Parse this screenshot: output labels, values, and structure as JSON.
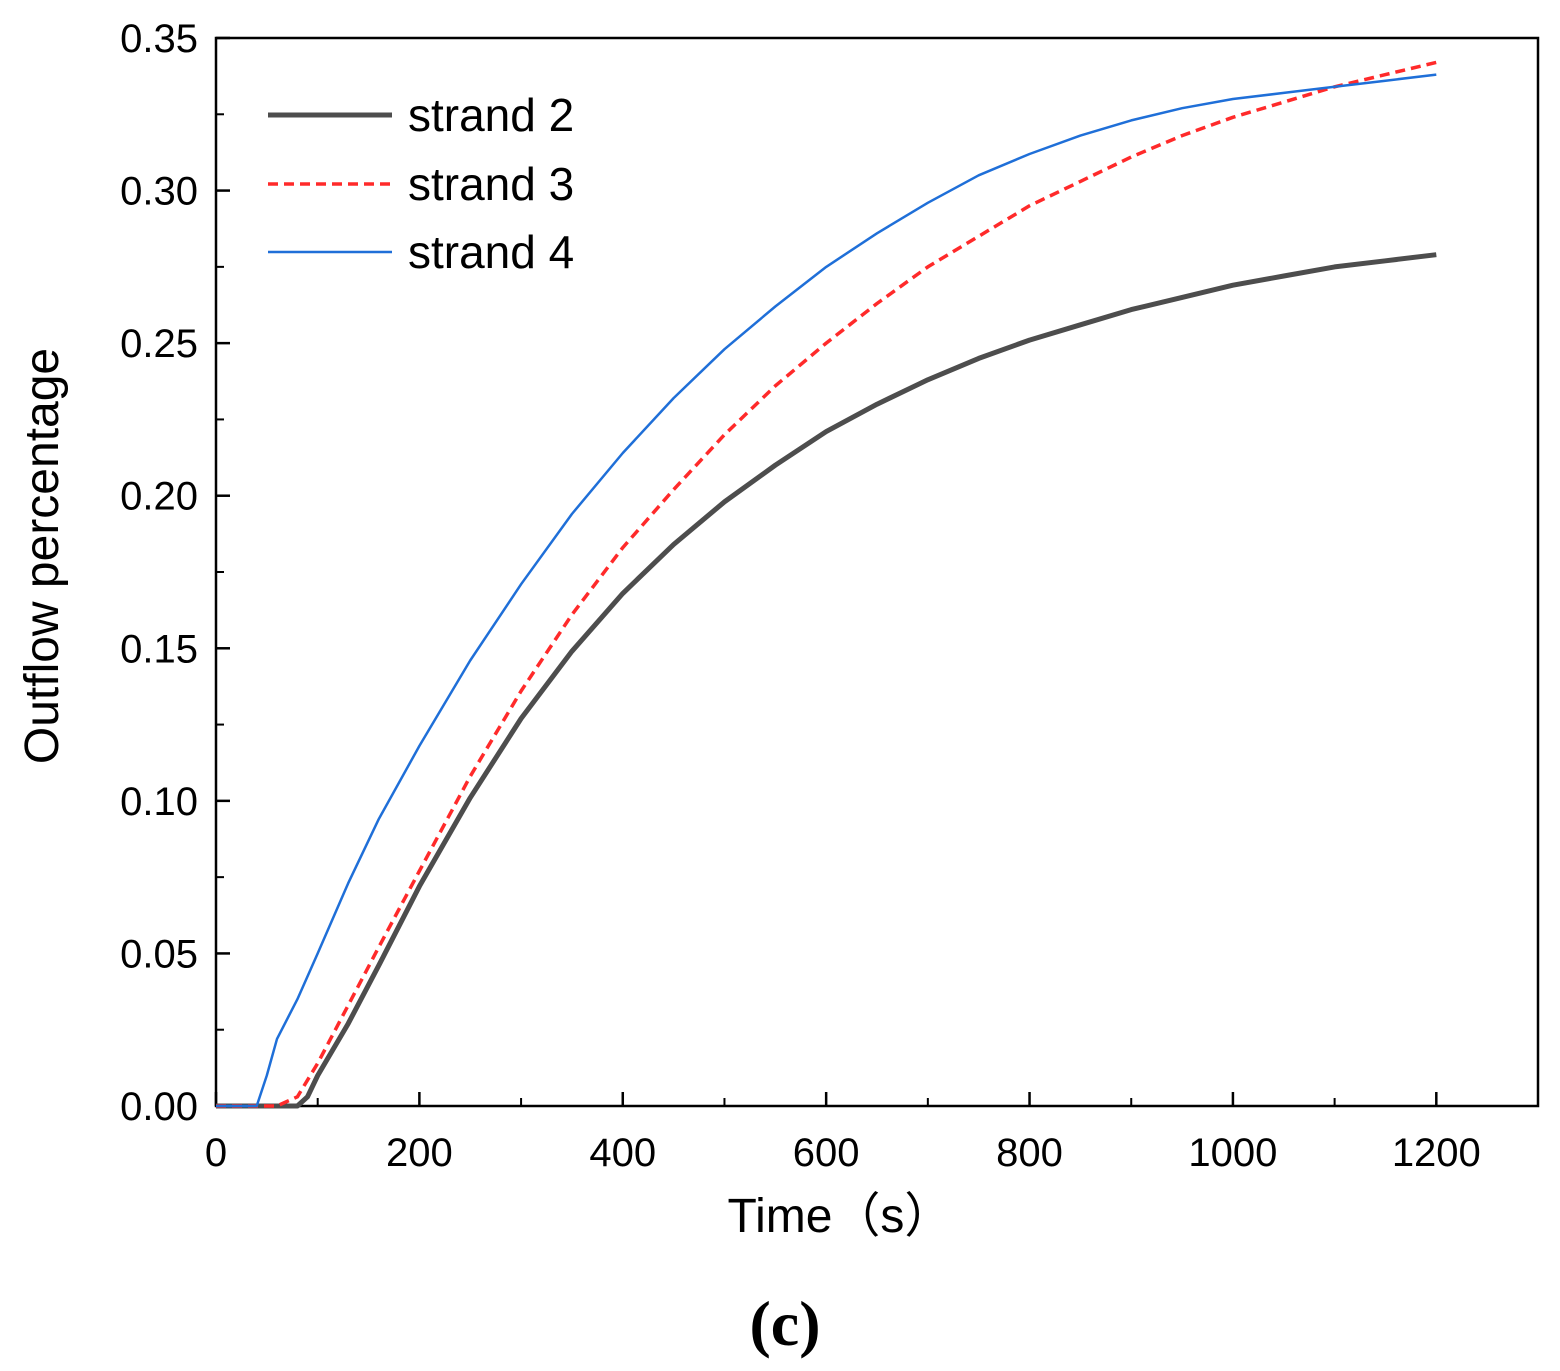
{
  "chart_data": {
    "type": "line",
    "xlabel": "Time（s）",
    "ylabel": "Outflow percentage",
    "panel_label": "(c)",
    "xlim": [
      0,
      1300
    ],
    "ylim": [
      0,
      0.35
    ],
    "x_major_ticks": [
      0,
      200,
      400,
      600,
      800,
      1000,
      1200
    ],
    "x_tick_labels": [
      "0",
      "200",
      "400",
      "600",
      "800",
      "1000",
      "1200"
    ],
    "x_minor_ticks": [
      100,
      300,
      500,
      700,
      900,
      1100,
      1300
    ],
    "y_major_ticks": [
      0,
      0.05,
      0.1,
      0.15,
      0.2,
      0.25,
      0.3,
      0.35
    ],
    "y_tick_labels": [
      "0.00",
      "0.05",
      "0.10",
      "0.15",
      "0.20",
      "0.25",
      "0.30",
      "0.35"
    ],
    "y_minor_ticks": [
      0.025,
      0.075,
      0.125,
      0.175,
      0.225,
      0.275,
      0.325
    ],
    "grid": false,
    "legend_position": "top-left",
    "series": [
      {
        "name": "strand 2",
        "color": "#4d4d4d",
        "dash": "solid",
        "width": "thick",
        "x": [
          0,
          80,
          90,
          100,
          130,
          160,
          200,
          250,
          300,
          350,
          400,
          450,
          500,
          550,
          600,
          650,
          700,
          750,
          800,
          850,
          900,
          950,
          1000,
          1050,
          1100,
          1150,
          1200
        ],
        "y": [
          0,
          0,
          0.003,
          0.01,
          0.027,
          0.046,
          0.072,
          0.101,
          0.127,
          0.149,
          0.168,
          0.184,
          0.198,
          0.21,
          0.221,
          0.23,
          0.238,
          0.245,
          0.251,
          0.256,
          0.261,
          0.265,
          0.269,
          0.272,
          0.275,
          0.277,
          0.279
        ]
      },
      {
        "name": "strand 3",
        "color": "#ff2a2a",
        "dash": "dashed",
        "width": "medium",
        "x": [
          0,
          60,
          80,
          100,
          130,
          160,
          200,
          250,
          300,
          350,
          400,
          450,
          500,
          550,
          600,
          650,
          700,
          750,
          800,
          850,
          900,
          950,
          1000,
          1050,
          1100,
          1150,
          1200
        ],
        "y": [
          0,
          0,
          0.003,
          0.014,
          0.033,
          0.052,
          0.077,
          0.108,
          0.136,
          0.161,
          0.183,
          0.202,
          0.22,
          0.236,
          0.25,
          0.263,
          0.275,
          0.285,
          0.295,
          0.303,
          0.311,
          0.318,
          0.324,
          0.329,
          0.334,
          0.338,
          0.342
        ]
      },
      {
        "name": "strand 4",
        "color": "#1f6fd8",
        "dash": "solid",
        "width": "thin",
        "x": [
          0,
          40,
          50,
          60,
          80,
          100,
          130,
          160,
          200,
          250,
          300,
          350,
          400,
          450,
          500,
          550,
          600,
          650,
          700,
          750,
          800,
          850,
          900,
          950,
          1000,
          1050,
          1100,
          1150,
          1200
        ],
        "y": [
          0,
          0,
          0.01,
          0.022,
          0.035,
          0.05,
          0.073,
          0.094,
          0.118,
          0.146,
          0.171,
          0.194,
          0.214,
          0.232,
          0.248,
          0.262,
          0.275,
          0.286,
          0.296,
          0.305,
          0.312,
          0.318,
          0.323,
          0.327,
          0.33,
          0.332,
          0.334,
          0.336,
          0.338
        ]
      }
    ]
  }
}
